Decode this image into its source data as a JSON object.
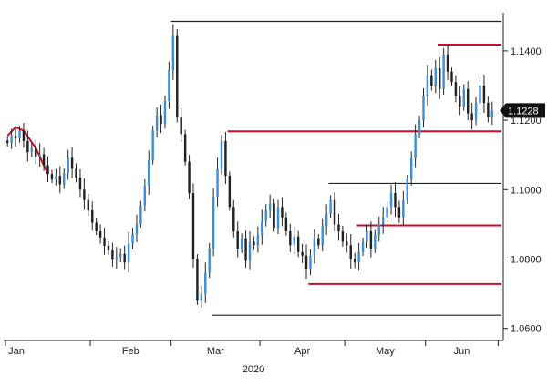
{
  "chart_data": {
    "type": "candlestick",
    "title": "",
    "xlabel": "2020",
    "ylabel": "",
    "ylim": [
      1.0565,
      1.151
    ],
    "grid": false,
    "x_ticks": [
      "Jan",
      "Feb",
      "Mar",
      "Apr",
      "May",
      "Jun"
    ],
    "year_label": "2020",
    "y_ticks": [
      "1.0600",
      "1.0800",
      "1.1000",
      "1.1200",
      "1.1400"
    ],
    "last_price": {
      "value": 1.1228,
      "label": "1.1228"
    },
    "colors": {
      "up": "#3b8fd9",
      "down": "#222222",
      "red": "#c8102e",
      "black": "#222222",
      "tag_bg": "#111111",
      "tag_text": "#ffffff"
    },
    "closes": [
      1.1135,
      1.1155,
      1.1148,
      1.117,
      1.114,
      1.1108,
      1.112,
      1.1095,
      1.1102,
      1.107,
      1.1045,
      1.103,
      1.104,
      1.1015,
      1.1048,
      1.1092,
      1.106,
      1.1035,
      1.1,
      1.097,
      1.094,
      1.0905,
      1.088,
      1.0862,
      1.0838,
      1.0825,
      1.0798,
      1.0805,
      1.0815,
      1.079,
      1.0845,
      1.0872,
      1.0902,
      1.0955,
      1.101,
      1.1085,
      1.117,
      1.1215,
      1.119,
      1.1255,
      1.1345,
      1.1445,
      1.121,
      1.116,
      1.108,
      1.099,
      1.08,
      1.068,
      1.07,
      1.076,
      1.083,
      1.098,
      1.106,
      1.114,
      1.104,
      1.095,
      1.088,
      1.083,
      1.086,
      1.0795,
      1.085,
      1.084,
      1.087,
      1.091,
      1.094,
      1.096,
      1.089,
      1.095,
      1.092,
      1.088,
      1.084,
      1.0865,
      1.082,
      1.081,
      1.077,
      1.081,
      1.086,
      1.084,
      1.0895,
      1.093,
      1.097,
      1.09,
      1.088,
      1.085,
      1.084,
      1.08,
      1.079,
      1.082,
      1.085,
      1.088,
      1.083,
      1.087,
      1.09,
      1.092,
      1.095,
      1.099,
      1.095,
      1.092,
      1.097,
      1.103,
      1.109,
      1.116,
      1.12,
      1.127,
      1.133,
      1.13,
      1.135,
      1.129,
      1.139,
      1.134,
      1.131,
      1.127,
      1.124,
      1.129,
      1.122,
      1.12,
      1.125,
      1.13,
      1.125,
      1.121,
      1.1228
    ],
    "levels": [
      {
        "value": 1.1485,
        "from_index": 41,
        "color": "black"
      },
      {
        "value": 1.1418,
        "from_index": 107,
        "color": "red"
      },
      {
        "value": 1.1168,
        "from_index": 55,
        "color": "red"
      },
      {
        "value": 1.1018,
        "from_index": 80,
        "color": "black"
      },
      {
        "value": 1.0897,
        "from_index": 87,
        "color": "red"
      },
      {
        "value": 1.0728,
        "from_index": 75,
        "color": "red"
      },
      {
        "value": 1.0638,
        "from_index": 51,
        "color": "black"
      }
    ],
    "arc": [
      [
        0,
        1.1155
      ],
      [
        2,
        1.118
      ],
      [
        4,
        1.117
      ],
      [
        7,
        1.112
      ],
      [
        10,
        1.1045
      ]
    ]
  }
}
